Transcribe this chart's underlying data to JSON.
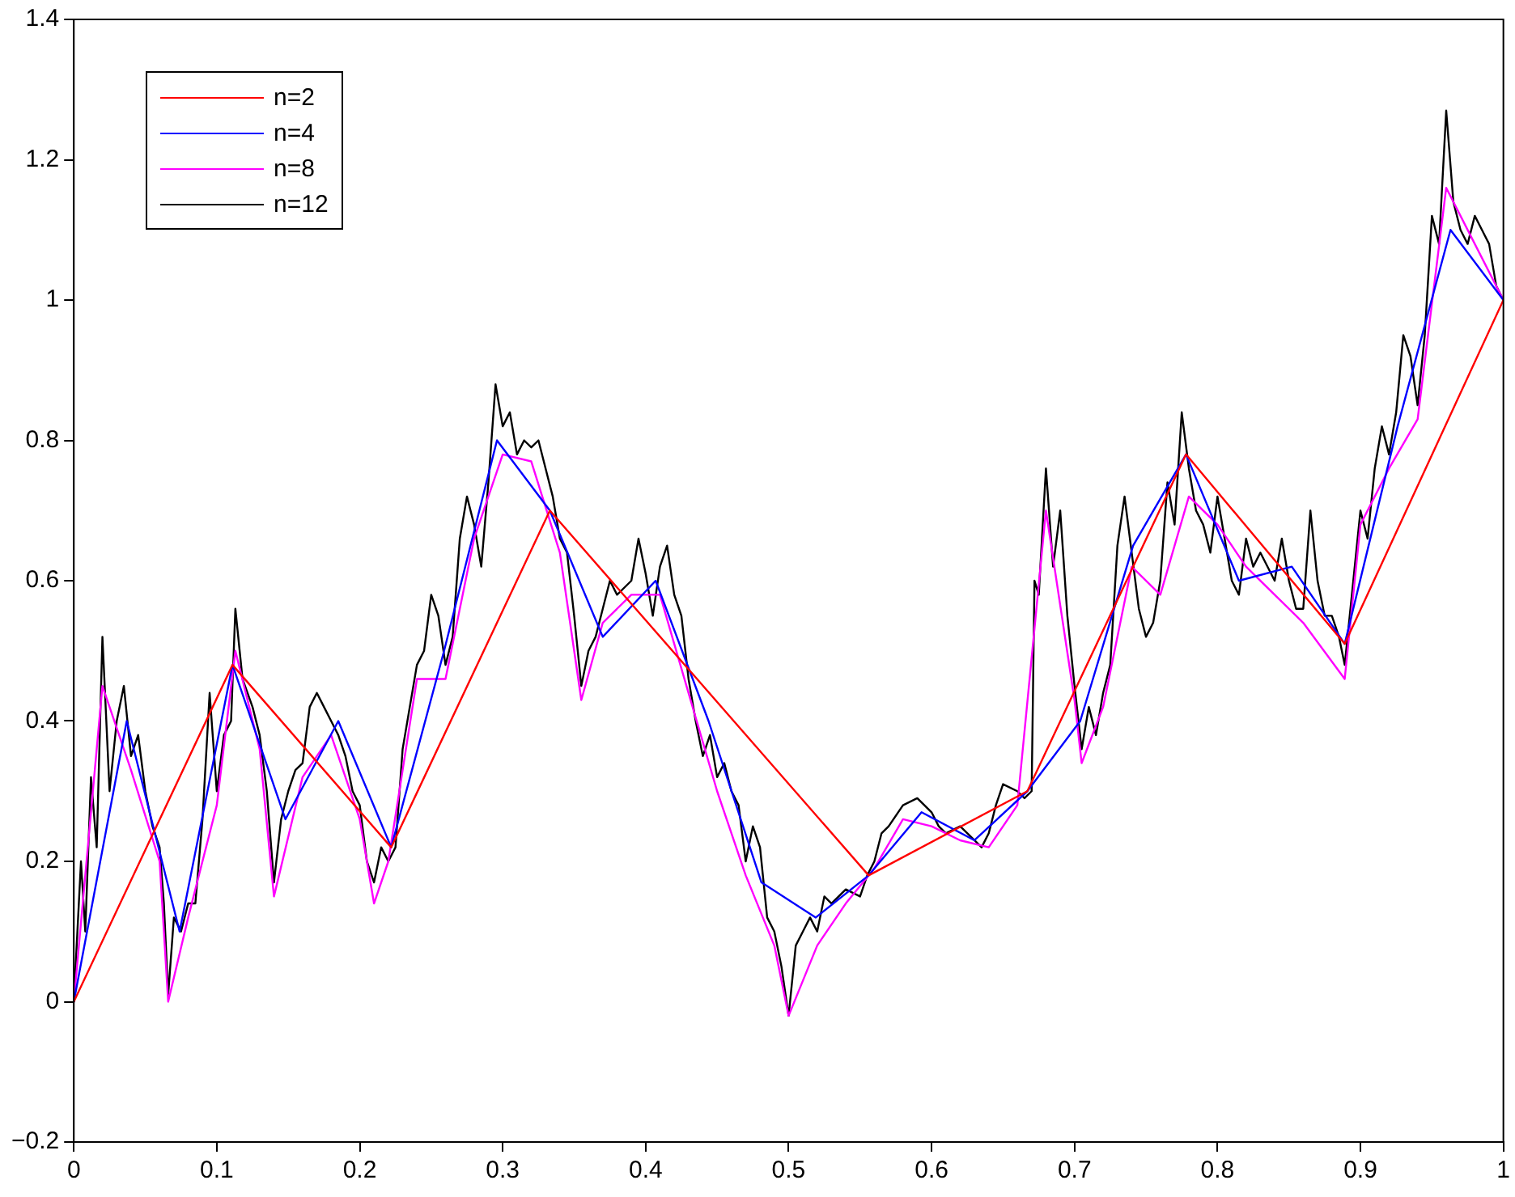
{
  "chart_data": {
    "type": "line",
    "xlim": [
      0,
      1
    ],
    "xticks": [
      0,
      0.1,
      0.2,
      0.3,
      0.4,
      0.5,
      0.6,
      0.7,
      0.8,
      0.9,
      1
    ],
    "ylim": [
      -0.2,
      1.4
    ],
    "yticks": [
      {
        "value": -0.2,
        "label": "−0.2"
      },
      0,
      0.2,
      0.4,
      0.6,
      0.8,
      1,
      1.2,
      1.4
    ],
    "grid": false,
    "legend": "top left",
    "marker": "none",
    "line_style": "solid",
    "series": [
      {
        "name": "n=2",
        "color": "#ff0000",
        "x": [
          0,
          0.111,
          0.222,
          0.333,
          0.556,
          0.667,
          0.778,
          0.889,
          1
        ],
        "values": [
          0,
          0.48,
          0.22,
          0.7,
          0.18,
          0.3,
          0.78,
          0.51,
          1
        ]
      },
      {
        "name": "n=4",
        "color": "#0000ff",
        "x": [
          0,
          0.037,
          0.074,
          0.111,
          0.148,
          0.185,
          0.222,
          0.259,
          0.296,
          0.333,
          0.37,
          0.407,
          0.444,
          0.481,
          0.519,
          0.556,
          0.593,
          0.63,
          0.667,
          0.704,
          0.741,
          0.778,
          0.815,
          0.852,
          0.889,
          0.926,
          0.963,
          1
        ],
        "values": [
          0,
          0.4,
          0.1,
          0.48,
          0.26,
          0.4,
          0.22,
          0.5,
          0.8,
          0.7,
          0.52,
          0.6,
          0.4,
          0.17,
          0.12,
          0.18,
          0.27,
          0.23,
          0.3,
          0.4,
          0.65,
          0.78,
          0.6,
          0.62,
          0.51,
          0.82,
          1.1,
          1
        ]
      },
      {
        "name": "n=8",
        "color": "#ff00ff",
        "x": [
          0,
          0.02,
          0.04,
          0.06,
          0.066,
          0.08,
          0.1,
          0.113,
          0.13,
          0.14,
          0.16,
          0.18,
          0.2,
          0.21,
          0.22,
          0.24,
          0.26,
          0.28,
          0.3,
          0.32,
          0.34,
          0.355,
          0.37,
          0.39,
          0.41,
          0.43,
          0.45,
          0.47,
          0.49,
          0.5,
          0.52,
          0.54,
          0.56,
          0.58,
          0.6,
          0.62,
          0.64,
          0.66,
          0.68,
          0.7,
          0.705,
          0.72,
          0.74,
          0.76,
          0.78,
          0.8,
          0.82,
          0.84,
          0.86,
          0.889,
          0.9,
          0.92,
          0.94,
          0.96,
          0.98,
          1
        ],
        "values": [
          0,
          0.45,
          0.33,
          0.2,
          0,
          0.12,
          0.28,
          0.5,
          0.36,
          0.15,
          0.32,
          0.38,
          0.26,
          0.14,
          0.2,
          0.46,
          0.46,
          0.66,
          0.78,
          0.77,
          0.64,
          0.43,
          0.54,
          0.58,
          0.58,
          0.44,
          0.3,
          0.18,
          0.08,
          -0.02,
          0.08,
          0.14,
          0.19,
          0.26,
          0.25,
          0.23,
          0.22,
          0.28,
          0.7,
          0.43,
          0.34,
          0.42,
          0.62,
          0.58,
          0.72,
          0.68,
          0.62,
          0.58,
          0.54,
          0.46,
          0.68,
          0.76,
          0.83,
          1.16,
          1.08,
          1
        ]
      },
      {
        "name": "n=12",
        "color": "#000000",
        "x": [
          0,
          0.005,
          0.008,
          0.012,
          0.016,
          0.02,
          0.025,
          0.03,
          0.035,
          0.04,
          0.045,
          0.05,
          0.055,
          0.06,
          0.063,
          0.066,
          0.07,
          0.075,
          0.08,
          0.085,
          0.09,
          0.095,
          0.1,
          0.105,
          0.11,
          0.113,
          0.118,
          0.125,
          0.13,
          0.135,
          0.14,
          0.145,
          0.15,
          0.155,
          0.16,
          0.165,
          0.17,
          0.175,
          0.18,
          0.185,
          0.19,
          0.195,
          0.2,
          0.205,
          0.21,
          0.215,
          0.22,
          0.225,
          0.23,
          0.235,
          0.24,
          0.245,
          0.25,
          0.255,
          0.26,
          0.265,
          0.27,
          0.275,
          0.28,
          0.285,
          0.29,
          0.295,
          0.3,
          0.305,
          0.31,
          0.315,
          0.32,
          0.325,
          0.33,
          0.335,
          0.34,
          0.345,
          0.35,
          0.355,
          0.36,
          0.365,
          0.37,
          0.375,
          0.38,
          0.39,
          0.395,
          0.4,
          0.405,
          0.41,
          0.415,
          0.42,
          0.425,
          0.43,
          0.435,
          0.44,
          0.445,
          0.45,
          0.455,
          0.46,
          0.465,
          0.47,
          0.475,
          0.48,
          0.485,
          0.49,
          0.495,
          0.5,
          0.505,
          0.51,
          0.515,
          0.52,
          0.525,
          0.53,
          0.54,
          0.55,
          0.555,
          0.56,
          0.565,
          0.57,
          0.58,
          0.59,
          0.6,
          0.605,
          0.61,
          0.62,
          0.63,
          0.635,
          0.64,
          0.645,
          0.65,
          0.66,
          0.665,
          0.67,
          0.672,
          0.675,
          0.68,
          0.685,
          0.69,
          0.695,
          0.7,
          0.705,
          0.71,
          0.715,
          0.72,
          0.725,
          0.73,
          0.735,
          0.74,
          0.745,
          0.75,
          0.755,
          0.76,
          0.765,
          0.77,
          0.775,
          0.78,
          0.785,
          0.79,
          0.795,
          0.8,
          0.805,
          0.81,
          0.815,
          0.82,
          0.825,
          0.83,
          0.84,
          0.845,
          0.85,
          0.855,
          0.86,
          0.865,
          0.87,
          0.875,
          0.88,
          0.885,
          0.889,
          0.895,
          0.9,
          0.905,
          0.91,
          0.915,
          0.92,
          0.925,
          0.93,
          0.935,
          0.94,
          0.945,
          0.95,
          0.955,
          0.96,
          0.965,
          0.97,
          0.975,
          0.98,
          0.985,
          0.99,
          0.995,
          1
        ],
        "values": [
          0,
          0.2,
          0.1,
          0.32,
          0.22,
          0.52,
          0.3,
          0.4,
          0.45,
          0.35,
          0.38,
          0.3,
          0.25,
          0.22,
          0.14,
          0.01,
          0.12,
          0.1,
          0.14,
          0.14,
          0.26,
          0.44,
          0.3,
          0.38,
          0.4,
          0.56,
          0.46,
          0.42,
          0.38,
          0.3,
          0.17,
          0.26,
          0.3,
          0.33,
          0.34,
          0.42,
          0.44,
          0.42,
          0.4,
          0.38,
          0.35,
          0.3,
          0.28,
          0.2,
          0.17,
          0.22,
          0.2,
          0.22,
          0.36,
          0.42,
          0.48,
          0.5,
          0.58,
          0.55,
          0.48,
          0.52,
          0.66,
          0.72,
          0.68,
          0.62,
          0.74,
          0.88,
          0.82,
          0.84,
          0.78,
          0.8,
          0.79,
          0.8,
          0.76,
          0.72,
          0.66,
          0.64,
          0.55,
          0.45,
          0.5,
          0.52,
          0.56,
          0.6,
          0.58,
          0.6,
          0.66,
          0.61,
          0.55,
          0.62,
          0.65,
          0.58,
          0.55,
          0.46,
          0.4,
          0.35,
          0.38,
          0.32,
          0.34,
          0.3,
          0.28,
          0.2,
          0.25,
          0.22,
          0.12,
          0.1,
          0.05,
          -0.02,
          0.08,
          0.1,
          0.12,
          0.1,
          0.15,
          0.14,
          0.16,
          0.15,
          0.18,
          0.2,
          0.24,
          0.25,
          0.28,
          0.29,
          0.27,
          0.25,
          0.24,
          0.25,
          0.23,
          0.22,
          0.24,
          0.28,
          0.31,
          0.3,
          0.29,
          0.3,
          0.6,
          0.58,
          0.76,
          0.62,
          0.7,
          0.55,
          0.45,
          0.36,
          0.42,
          0.38,
          0.44,
          0.48,
          0.65,
          0.72,
          0.64,
          0.56,
          0.52,
          0.54,
          0.6,
          0.74,
          0.68,
          0.84,
          0.76,
          0.7,
          0.68,
          0.64,
          0.72,
          0.66,
          0.6,
          0.58,
          0.66,
          0.62,
          0.64,
          0.6,
          0.66,
          0.6,
          0.56,
          0.56,
          0.7,
          0.6,
          0.55,
          0.55,
          0.52,
          0.48,
          0.6,
          0.7,
          0.66,
          0.76,
          0.82,
          0.78,
          0.84,
          0.95,
          0.92,
          0.85,
          0.95,
          1.12,
          1.08,
          1.27,
          1.14,
          1.1,
          1.08,
          1.12,
          1.1,
          1.08,
          1.02,
          1
        ]
      }
    ]
  }
}
